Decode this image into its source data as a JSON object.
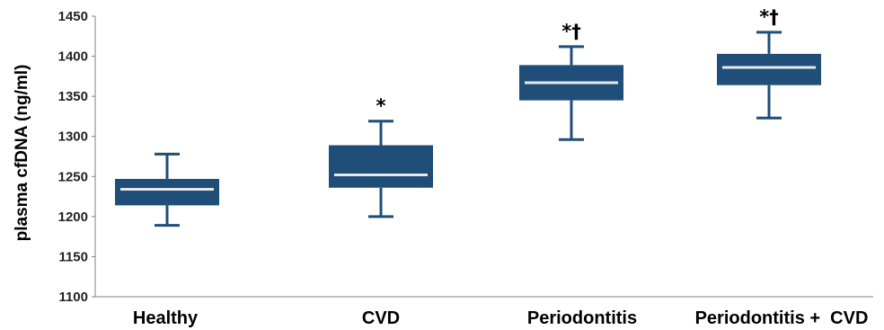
{
  "chart_data": {
    "type": "box",
    "ylabel": "plasma cfDNA (ng/ml)",
    "xlabel": "",
    "title": "",
    "ylim": [
      1100,
      1450
    ],
    "yticks": [
      1100,
      1150,
      1200,
      1250,
      1300,
      1350,
      1400,
      1450
    ],
    "grid": false,
    "color": "#1f4e79",
    "median_color": "#e8e8e8",
    "categories": [
      "Healthy",
      "CVD",
      "Periodontitis",
      "Periodontitis +  CVD"
    ],
    "boxes": [
      {
        "category": "Healthy",
        "min": 1189,
        "q1": 1214,
        "median": 1234,
        "q3": 1247,
        "max": 1278,
        "annotation": ""
      },
      {
        "category": "CVD",
        "min": 1200,
        "q1": 1236,
        "median": 1252,
        "q3": 1289,
        "max": 1319,
        "annotation": "*"
      },
      {
        "category": "Periodontitis",
        "min": 1296,
        "q1": 1345,
        "median": 1367,
        "q3": 1389,
        "max": 1412,
        "annotation": "*†"
      },
      {
        "category": "Periodontitis +  CVD",
        "min": 1323,
        "q1": 1364,
        "median": 1386,
        "q3": 1403,
        "max": 1430,
        "annotation": "*†"
      }
    ]
  }
}
